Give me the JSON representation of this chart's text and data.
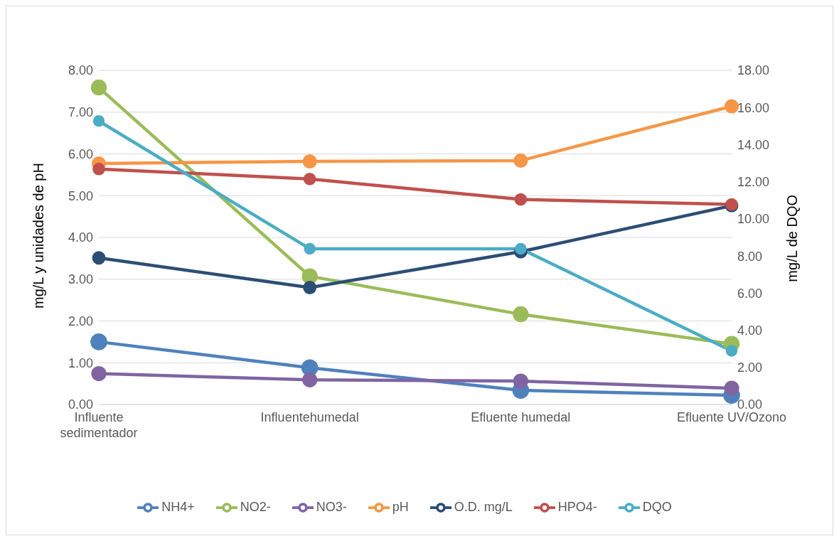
{
  "chart_data": {
    "type": "line",
    "categories": [
      "Influente sedimentador",
      "Influentehumedal",
      "Efluente humedal",
      "Efluente UV/Ozono"
    ],
    "ylabel": "mg/L y unidades de pH",
    "y2label": "mg/L de DQO",
    "series": [
      {
        "name": "NH4+",
        "color": "#4f81bd",
        "values": [
          1.5,
          0.88,
          0.34,
          0.22
        ]
      },
      {
        "name": "NO2-",
        "color": "#9bbb59",
        "values": [
          7.59,
          3.07,
          2.16,
          1.45
        ]
      },
      {
        "name": "NO3-",
        "color": "#8064a2",
        "values": [
          0.74,
          0.59,
          0.56,
          0.39
        ]
      },
      {
        "name": "pH",
        "color": "#f79646",
        "values": [
          5.77,
          5.82,
          5.84,
          7.14
        ]
      },
      {
        "name": "O.D. mg/L",
        "color": "#2c4d75",
        "values": [
          3.51,
          2.8,
          3.66,
          4.76
        ]
      },
      {
        "name": "HPO4-",
        "color": "#c0504d",
        "values": [
          5.64,
          5.4,
          4.91,
          4.79
        ]
      },
      {
        "name": "DQO",
        "color": "#4bacc6",
        "axis": "y2",
        "values": [
          15.27,
          8.39,
          8.39,
          2.89
        ]
      }
    ],
    "ylim": [
      0,
      8
    ],
    "yticks": [
      {
        "value": 0,
        "label": "0.00"
      },
      {
        "value": 1,
        "label": "1.00"
      },
      {
        "value": 2,
        "label": "2.00"
      },
      {
        "value": 3,
        "label": "3.00"
      },
      {
        "value": 4,
        "label": "4.00"
      },
      {
        "value": 5,
        "label": "5.00"
      },
      {
        "value": 6,
        "label": "6.00"
      },
      {
        "value": 7,
        "label": "7.00"
      },
      {
        "value": 8,
        "label": "8.00"
      }
    ],
    "y2lim": [
      0,
      18
    ],
    "y2ticks": [
      {
        "value": 0,
        "label": "0.00"
      },
      {
        "value": 2,
        "label": "2.00"
      },
      {
        "value": 4,
        "label": "4.00"
      },
      {
        "value": 6,
        "label": "6.00"
      },
      {
        "value": 8,
        "label": "8.00"
      },
      {
        "value": 10,
        "label": "10.00"
      },
      {
        "value": 12,
        "label": "12.00"
      },
      {
        "value": 14,
        "label": "14.00"
      },
      {
        "value": 16,
        "label": "16.00"
      },
      {
        "value": 18,
        "label": "18.00"
      }
    ],
    "grid": "y",
    "legend": "bottom",
    "marker": "circle",
    "line_style": "solid"
  }
}
